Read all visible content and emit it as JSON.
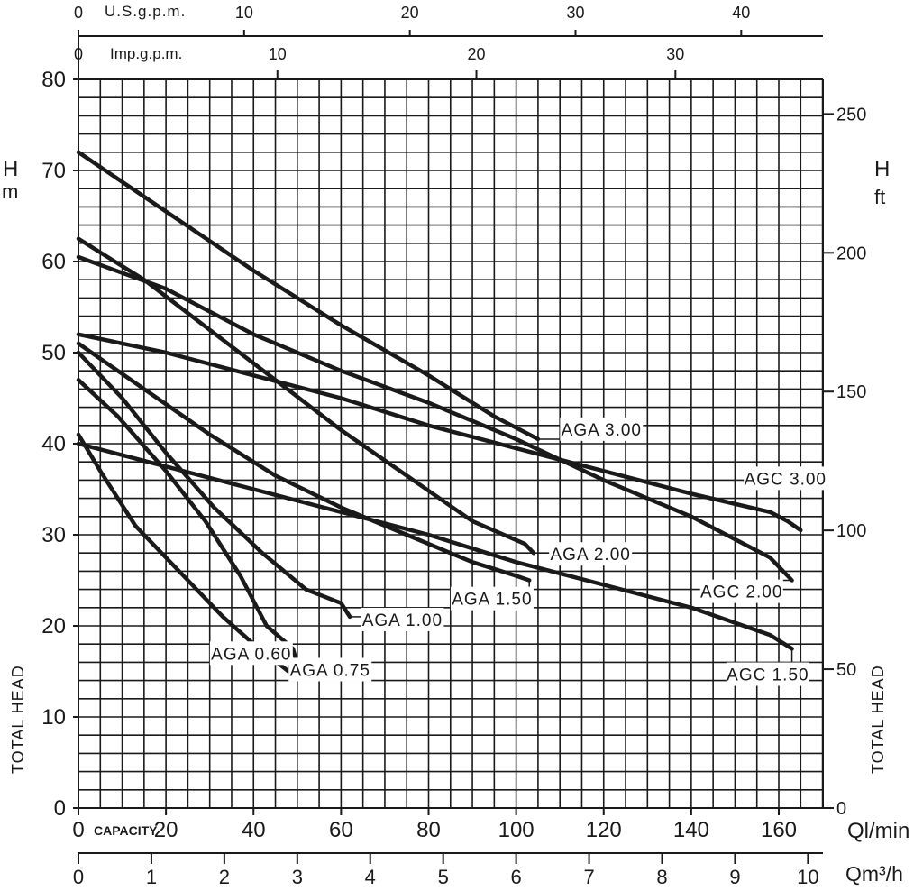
{
  "chart_data": {
    "type": "line",
    "x_unit_main": "Ql/min",
    "x_unit_m3h": "Qm³/h",
    "x_unit_usgpm": "U.S.g.p.m.",
    "x_unit_impgpm": "Imp.g.p.m.",
    "capacity_label": "CAPACITY",
    "left_axis_symbol": "H",
    "left_axis_unit": "m",
    "right_axis_symbol": "H",
    "right_axis_unit": "ft",
    "left_title": "TOTAL HEAD",
    "right_title": "TOTAL HEAD",
    "xlim": [
      0,
      166
    ],
    "ylim": [
      0,
      80
    ],
    "grid": true,
    "ticks": {
      "ql": [
        "0",
        "20",
        "40",
        "60",
        "80",
        "100",
        "120",
        "140",
        "160"
      ],
      "m3h": [
        "0",
        "1",
        "2",
        "3",
        "4",
        "5",
        "6",
        "7",
        "8",
        "9",
        "10"
      ],
      "usgpm": [
        "0",
        "10",
        "20",
        "30",
        "40"
      ],
      "impgpm": [
        "0",
        "10",
        "20",
        "30"
      ],
      "head_m": [
        "0",
        "10",
        "20",
        "30",
        "40",
        "50",
        "60",
        "70",
        "80"
      ],
      "head_ft": [
        "0",
        "50",
        "100",
        "150",
        "200",
        "250"
      ]
    },
    "series": [
      {
        "name": "AGA 0.60",
        "x": [
          0,
          5,
          13,
          24,
          33,
          40,
          48
        ],
        "y": [
          41,
          37,
          31,
          25.5,
          21,
          18,
          15
        ]
      },
      {
        "name": "AGA 0.75",
        "x": [
          0,
          9,
          20,
          29,
          37,
          43,
          49,
          50
        ],
        "y": [
          47,
          43,
          37,
          31.5,
          25.5,
          20,
          17.5,
          15.8
        ]
      },
      {
        "name": "AGA 1.00",
        "x": [
          0,
          10,
          20,
          31,
          42,
          52,
          60,
          62
        ],
        "y": [
          50,
          45,
          39,
          33,
          28,
          24,
          22.5,
          21
        ]
      },
      {
        "name": "AGA 1.50",
        "x": [
          0,
          15,
          30,
          45,
          60,
          75,
          90,
          100,
          103
        ],
        "y": [
          51,
          46,
          41,
          36.5,
          33,
          30,
          27,
          25.5,
          25
        ]
      },
      {
        "name": "AGC 1.50",
        "x": [
          0,
          20,
          40,
          60,
          80,
          100,
          120,
          140,
          158,
          163
        ],
        "y": [
          40,
          37.5,
          35,
          32.5,
          30,
          27,
          24.5,
          22,
          19,
          17.5
        ]
      },
      {
        "name": "AGA 2.00",
        "x": [
          0,
          15,
          30,
          45,
          60,
          75,
          90,
          102,
          104
        ],
        "y": [
          62.5,
          58,
          52.5,
          47,
          41.5,
          36.5,
          31.5,
          29,
          28
        ]
      },
      {
        "name": "AGC 2.00",
        "x": [
          0,
          20,
          40,
          60,
          80,
          100,
          120,
          140,
          158,
          163
        ],
        "y": [
          60.5,
          57,
          52,
          48,
          44.5,
          40.5,
          36,
          32,
          27.5,
          25
        ]
      },
      {
        "name": "AGA 3.00",
        "x": [
          0,
          20,
          40,
          60,
          80,
          95,
          105
        ],
        "y": [
          72,
          65.5,
          59,
          53,
          47.5,
          43,
          40.5
        ]
      },
      {
        "name": "AGC 3.00",
        "x": [
          0,
          20,
          40,
          60,
          80,
          100,
          120,
          140,
          158,
          162,
          165
        ],
        "y": [
          52,
          50,
          47.5,
          45,
          42,
          39.5,
          37,
          34.5,
          32.5,
          31.5,
          30.5
        ]
      }
    ],
    "annotations": [
      {
        "text": "AGA 0.60",
        "series": "AGA 0.60",
        "x": 39.5,
        "y": 17
      },
      {
        "text": "AGA 0.75",
        "series": "AGA 0.75",
        "x": 57.5,
        "y": 15.2
      },
      {
        "text": "AGA 1.00",
        "series": "AGA 1.00",
        "x": 74,
        "y": 20.7
      },
      {
        "text": "AGA 1.50",
        "series": "AGA 1.50",
        "x": 94.5,
        "y": 23
      },
      {
        "text": "AGC 1.50",
        "series": "AGC 1.50",
        "x": 157.5,
        "y": 14.7
      },
      {
        "text": "AGA 2.00",
        "series": "AGA 2.00",
        "x": 117,
        "y": 27.9
      },
      {
        "text": "AGC 2.00",
        "series": "AGC 2.00",
        "x": 151.5,
        "y": 23.8
      },
      {
        "text": "AGA 3.00",
        "series": "AGA 3.00",
        "x": 119.5,
        "y": 41.6
      },
      {
        "text": "AGC 3.00",
        "series": "AGC 3.00",
        "x": 161.5,
        "y": 36.2
      }
    ]
  }
}
